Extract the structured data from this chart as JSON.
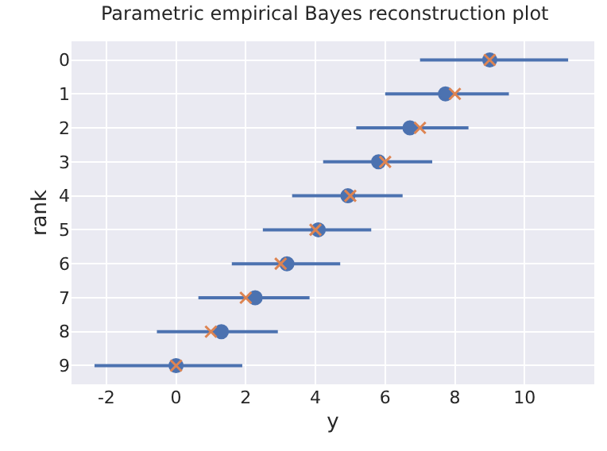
{
  "chart_data": {
    "type": "scatter",
    "title": "Parametric empirical Bayes reconstruction plot",
    "xlabel": "y",
    "ylabel": "rank",
    "orientation": "horizontal",
    "categories": [
      "0",
      "1",
      "2",
      "3",
      "4",
      "5",
      "6",
      "7",
      "8",
      "9"
    ],
    "series": [
      {
        "color": "#4c72b0",
        "marker": "circle",
        "values": [
          9.0,
          7.73,
          6.71,
          5.81,
          4.93,
          4.08,
          3.18,
          2.27,
          1.3,
          0.0
        ],
        "errors": [
          [
            7.0,
            11.25
          ],
          [
            6.0,
            9.55
          ],
          [
            5.17,
            8.39
          ],
          [
            4.22,
            7.35
          ],
          [
            3.33,
            6.5
          ],
          [
            2.49,
            5.6
          ],
          [
            1.6,
            4.71
          ],
          [
            0.64,
            3.83
          ],
          [
            -0.55,
            2.92
          ],
          [
            -2.34,
            1.9
          ]
        ]
      },
      {
        "color": "#dd8452",
        "marker": "cross",
        "values": [
          9,
          8,
          7,
          6,
          5,
          4,
          3,
          2,
          1,
          0
        ]
      }
    ],
    "xlim": [
      -3,
      12
    ],
    "xticks": [
      -2,
      0,
      2,
      4,
      6,
      8,
      10
    ],
    "grid": true
  }
}
